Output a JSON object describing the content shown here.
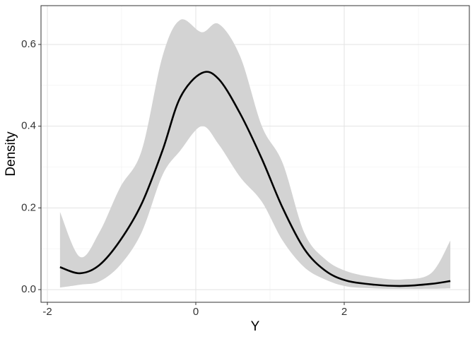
{
  "chart_data": {
    "type": "density_band",
    "x_label": "Y",
    "y_label": "Density",
    "x": [
      -1.83,
      -1.56,
      -1.3,
      -1.02,
      -0.73,
      -0.45,
      -0.21,
      0.08,
      0.31,
      0.6,
      0.89,
      1.17,
      1.46,
      1.74,
      2.03,
      2.41,
      2.79,
      3.17,
      3.43
    ],
    "values": [
      0.055,
      0.04,
      0.06,
      0.12,
      0.21,
      0.34,
      0.47,
      0.53,
      0.515,
      0.43,
      0.32,
      0.2,
      0.1,
      0.047,
      0.022,
      0.012,
      0.009,
      0.014,
      0.021
    ],
    "upper": [
      0.19,
      0.08,
      0.14,
      0.25,
      0.34,
      0.57,
      0.66,
      0.63,
      0.65,
      0.57,
      0.4,
      0.31,
      0.14,
      0.075,
      0.045,
      0.03,
      0.025,
      0.04,
      0.12
    ],
    "lower": [
      0.005,
      0.012,
      0.02,
      0.06,
      0.14,
      0.28,
      0.34,
      0.4,
      0.355,
      0.275,
      0.215,
      0.12,
      0.055,
      0.025,
      0.008,
      0.003,
      0.002,
      0.002,
      0.003
    ],
    "color": "#000000",
    "band_color": "#d3d3d3",
    "xlim": [
      -2.086,
      3.686
    ],
    "ylim": [
      -0.031,
      0.695
    ],
    "xticks": [
      -2,
      0,
      2
    ],
    "yticks": [
      {
        "value": 0,
        "label": "0.0"
      },
      0.2,
      0.4,
      0.6
    ],
    "xminorticks": [
      -1,
      1,
      3
    ],
    "yminorticks": [
      0.1,
      0.3,
      0.5
    ],
    "grid": true
  }
}
